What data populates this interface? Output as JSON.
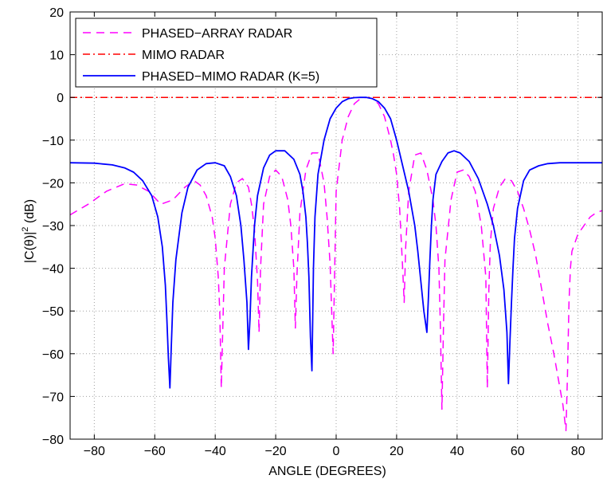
{
  "chart_data": {
    "type": "line",
    "title": "",
    "xlabel": "ANGLE (DEGREES)",
    "ylabel_main": "|C(θ)|",
    "ylabel_sup": "2",
    "ylabel_tail": " (dB)",
    "xlim": [
      -88,
      88
    ],
    "ylim": [
      -80,
      20
    ],
    "xticks": [
      -80,
      -60,
      -40,
      -20,
      0,
      20,
      40,
      60,
      80
    ],
    "yticks": [
      20,
      10,
      0,
      -10,
      -20,
      -30,
      -40,
      -50,
      -60,
      -70,
      -80
    ],
    "grid": true,
    "legend_position": "top-left",
    "series": [
      {
        "name": "PHASED−ARRAY RADAR",
        "color": "#ff00ff",
        "style": "dashed",
        "x": [
          -88,
          -82,
          -76,
          -70,
          -66,
          -62,
          -58,
          -54,
          -50,
          -47,
          -45,
          -43,
          -41,
          -40,
          -39,
          -38.5,
          -38,
          -37,
          -35,
          -33,
          -31,
          -29,
          -28,
          -27,
          -26,
          -25.5,
          -25,
          -24,
          -22,
          -20,
          -18,
          -16,
          -15,
          -14,
          -13.5,
          -13,
          -12,
          -10,
          -8,
          -6,
          -4,
          -3,
          -2,
          -1,
          0,
          2,
          4,
          6,
          8,
          10,
          12,
          14,
          16,
          18,
          19,
          20,
          21,
          22,
          22.5,
          23,
          24,
          26,
          28,
          30,
          32,
          33,
          34,
          34.5,
          35,
          35.5,
          36,
          38,
          40,
          42,
          44,
          46,
          48,
          49.5,
          50,
          50.5,
          51,
          52,
          54,
          56,
          58,
          60,
          62,
          64,
          66,
          68,
          70,
          72,
          74,
          75,
          76,
          76.5,
          77,
          77.5,
          78,
          80,
          82,
          84,
          86,
          88
        ],
        "y": [
          -27.5,
          -25,
          -22,
          -20.2,
          -20.5,
          -22,
          -25,
          -24,
          -21,
          -19.5,
          -20.5,
          -23,
          -28,
          -33,
          -42,
          -50,
          -68,
          -40,
          -25,
          -20,
          -19,
          -21,
          -25,
          -31,
          -43,
          -55,
          -40,
          -25,
          -18.5,
          -17,
          -18.5,
          -24,
          -30,
          -40,
          -54,
          -42,
          -27,
          -17,
          -13,
          -13,
          -20,
          -28,
          -39,
          -60,
          -22,
          -10,
          -4.5,
          -1.5,
          -0.3,
          0,
          -0.3,
          -1.5,
          -4.5,
          -10,
          -13.5,
          -18,
          -26,
          -40,
          -48,
          -35,
          -22,
          -13.5,
          -13,
          -17,
          -24,
          -30,
          -40,
          -54,
          -73,
          -54,
          -38,
          -24,
          -17.5,
          -17,
          -18.5,
          -22,
          -30,
          -42,
          -68,
          -45,
          -34,
          -26,
          -21,
          -19,
          -19.5,
          -22,
          -26,
          -31,
          -37,
          -45,
          -53,
          -60,
          -68,
          -72,
          -78,
          -65,
          -48,
          -40,
          -36,
          -32,
          -30,
          -28,
          -27,
          -26.5
        ]
      },
      {
        "name": "MIMO RADAR",
        "color": "#ff0000",
        "style": "dashdot",
        "x": [
          -88,
          88
        ],
        "y": [
          0,
          0
        ]
      },
      {
        "name": "PHASED−MIMO RADAR (K=5)",
        "color": "#0000ff",
        "style": "solid",
        "x": [
          -88,
          -80,
          -74,
          -70,
          -67,
          -64,
          -61,
          -59,
          -57.5,
          -56.5,
          -56,
          -55.5,
          -55,
          -54.5,
          -54,
          -53,
          -51,
          -49,
          -46,
          -43,
          -40,
          -37,
          -35,
          -33,
          -31.5,
          -30.5,
          -29.5,
          -29,
          -28.5,
          -28,
          -27,
          -26,
          -24,
          -22,
          -20,
          -17,
          -14,
          -12,
          -11,
          -10,
          -9.5,
          -9,
          -8.5,
          -8,
          -7.5,
          -7,
          -6,
          -4,
          -2,
          0,
          2,
          4,
          6,
          8,
          10,
          12,
          14,
          16,
          18,
          20,
          22,
          24,
          26,
          27,
          28,
          29,
          30,
          30.5,
          31,
          31.5,
          32,
          33,
          35,
          37,
          39,
          41,
          44,
          47,
          50,
          52,
          54,
          55.5,
          56.5,
          57,
          57.5,
          58,
          58.5,
          59,
          60,
          62,
          64,
          67,
          70,
          74,
          80,
          88
        ],
        "y": [
          -15.3,
          -15.4,
          -15.8,
          -16.5,
          -17.5,
          -19.5,
          -23,
          -28,
          -35,
          -44,
          -52,
          -61,
          -68,
          -58,
          -48,
          -38,
          -27,
          -21,
          -17,
          -15.5,
          -15.3,
          -16,
          -18.5,
          -23,
          -30,
          -38,
          -48,
          -59,
          -52,
          -42,
          -30,
          -23,
          -16.5,
          -13.5,
          -12.5,
          -12.5,
          -14.5,
          -18,
          -22,
          -28,
          -34,
          -42,
          -56,
          -64,
          -40,
          -28,
          -18,
          -10,
          -5,
          -2.5,
          -1,
          -0.3,
          -0.05,
          0,
          0,
          -0.3,
          -1,
          -2.5,
          -5,
          -10,
          -16,
          -22,
          -30,
          -36,
          -43,
          -50,
          -55,
          -47,
          -38,
          -30,
          -24,
          -18,
          -15,
          -13,
          -12.5,
          -13,
          -15,
          -19,
          -25,
          -30,
          -37,
          -45,
          -55,
          -67,
          -57,
          -48,
          -40,
          -33,
          -26,
          -19.5,
          -17,
          -16,
          -15.5,
          -15.3,
          -15.3,
          -15.3
        ]
      }
    ]
  }
}
